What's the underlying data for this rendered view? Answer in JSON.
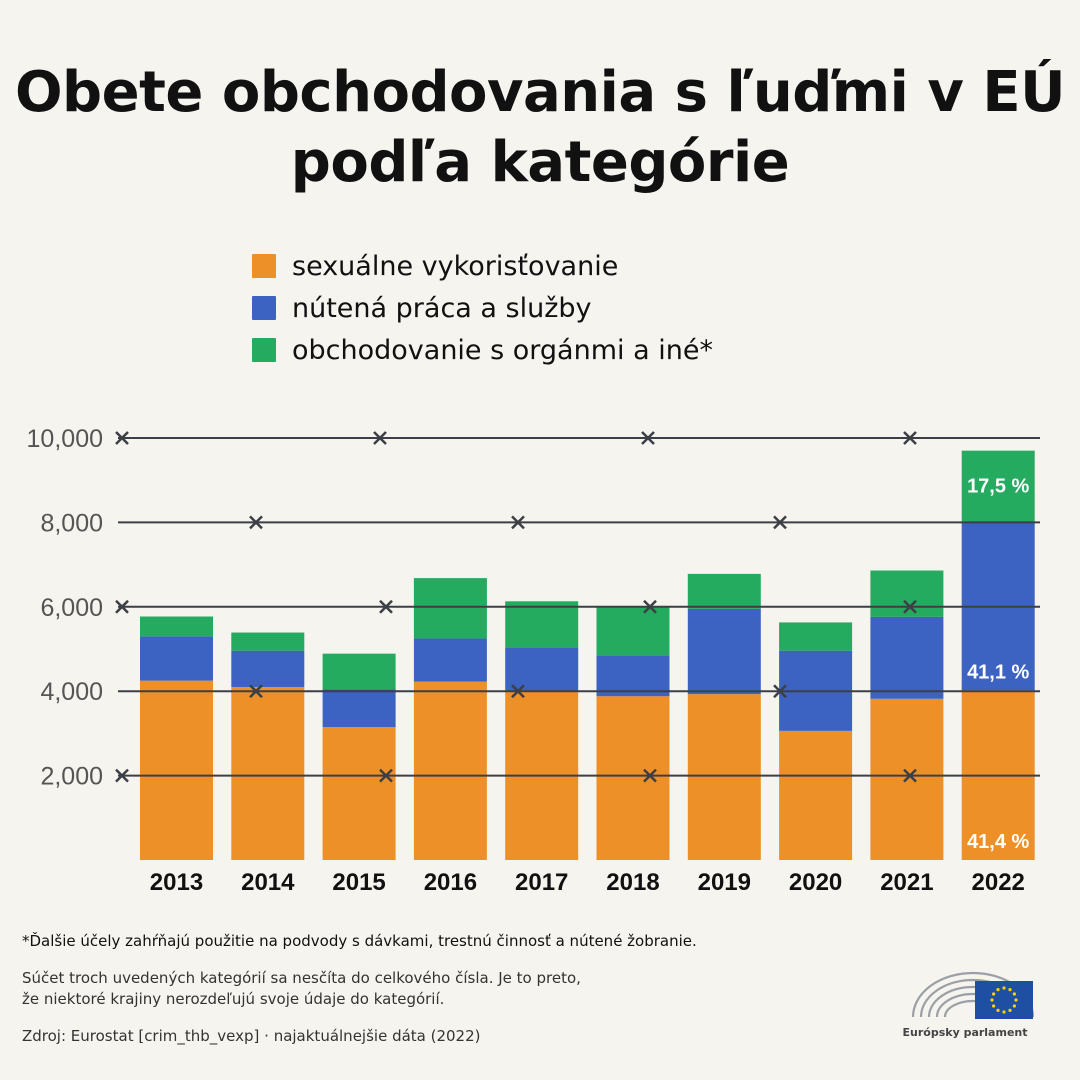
{
  "title": "Obete obchodovania s ľuďmi v EÚ podľa kategórie",
  "legend": [
    {
      "label": "sexuálne vykorisťovanie",
      "color": "#ee9028"
    },
    {
      "label": "nútená práca a služby",
      "color": "#3c63c2"
    },
    {
      "label": "obchodovanie s orgánmi a iné*",
      "color": "#25ab5f"
    }
  ],
  "chart_data": {
    "type": "bar",
    "stacked": true,
    "categories": [
      "2013",
      "2014",
      "2015",
      "2016",
      "2017",
      "2018",
      "2019",
      "2020",
      "2021",
      "2022"
    ],
    "series": [
      {
        "name": "sexuálne vykorisťovanie",
        "color": "#ee9028",
        "values": [
          4250,
          4100,
          3150,
          4230,
          4000,
          3880,
          3930,
          3060,
          3820,
          4020
        ]
      },
      {
        "name": "nútená práca a služby",
        "color": "#3c63c2",
        "values": [
          1050,
          860,
          900,
          1020,
          1040,
          970,
          2020,
          1900,
          1940,
          3990
        ]
      },
      {
        "name": "obchodovanie s orgánmi a iné*",
        "color": "#25ab5f",
        "values": [
          470,
          430,
          840,
          1430,
          1090,
          1160,
          830,
          670,
          1100,
          1690
        ]
      }
    ],
    "y_ticks": [
      "10,000",
      "8,000",
      "6,000",
      "4,000",
      "2,000"
    ],
    "ylim": [
      0,
      10000
    ],
    "grid": true,
    "annotations": [
      {
        "category": "2022",
        "series": "obchodovanie s orgánmi a iné*",
        "label": "17,5 %"
      },
      {
        "category": "2022",
        "series": "nútená práca a služby",
        "label": "41,1 %"
      },
      {
        "category": "2022",
        "series": "sexuálne vykorisťovanie",
        "label": "41,4 %"
      }
    ]
  },
  "footnote": "*Ďalšie účely zahŕňajú použitie na podvody s dávkami, trestnú činnosť a nútené žobranie.",
  "note_lines": [
    "Súčet troch uvedených kategórií sa nesčíta do celkového čísla. Je to preto,",
    "že niektoré krajiny nerozdeľujú svoje údaje do kategórií."
  ],
  "source": "Zdroj: Eurostat [crim_thb_vexp] · najaktuálnejšie dáta (2022)",
  "logo_text": "Európsky parlament"
}
